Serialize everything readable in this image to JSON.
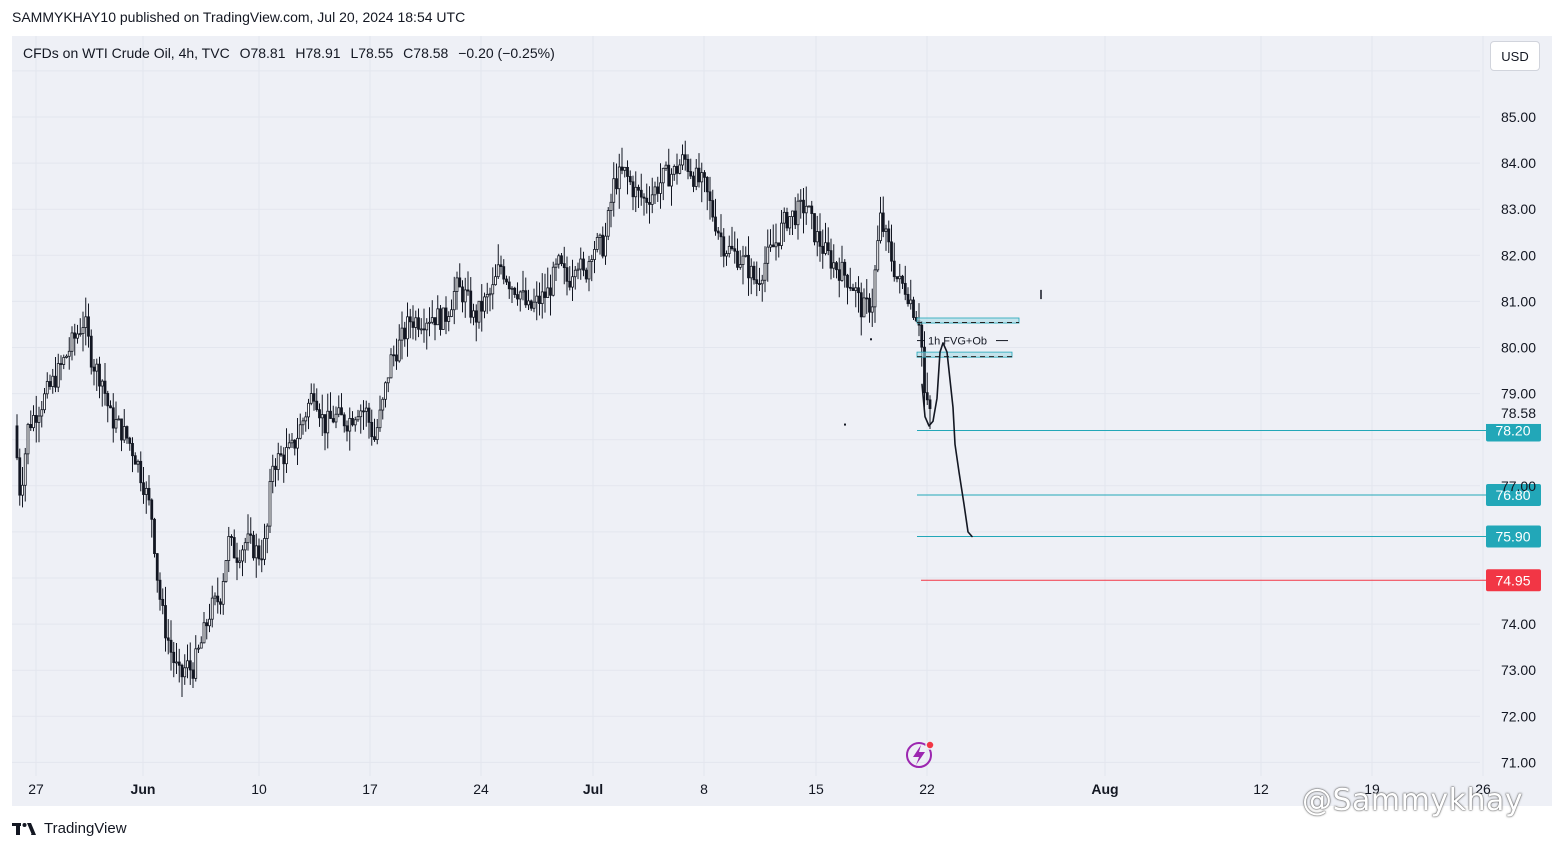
{
  "header": {
    "published_line": "SAMMYKHAY10 published on TradingView.com, Jul 20, 2024 18:54 UTC",
    "symbol": "CFDs on WTI Crude Oil, 4h, TVC",
    "open": "O78.81",
    "high": "H78.91",
    "low": "L78.55",
    "close": "C78.58",
    "change": "−0.20 (−0.25%)",
    "currency": "USD"
  },
  "footer": {
    "brand": "TradingView",
    "watermark": "@Sammykhay"
  },
  "colors": {
    "bull_candle": "#131722",
    "bear_candle": "#131722",
    "target_line": "#22a7b8",
    "stop_line": "#f23645",
    "fvg_zone": "#a8dbe6",
    "background": "#eef0f6"
  },
  "chart_data": {
    "type": "candlestick",
    "symbol": "CFDs on WTI Crude Oil",
    "timeframe": "4h",
    "y_axis": {
      "ticks": [
        85.0,
        84.0,
        83.0,
        82.0,
        81.0,
        80.0,
        79.0,
        77.0,
        74.0,
        73.0,
        72.0,
        71.0
      ],
      "ylim": [
        70.7,
        86.7
      ]
    },
    "x_axis": {
      "ticks": [
        "27",
        "Jun",
        "10",
        "17",
        "24",
        "Jul",
        "8",
        "15",
        "22",
        "Aug",
        "12",
        "19",
        "26"
      ]
    },
    "price_path": [
      [
        0,
        78.3
      ],
      [
        6,
        76.8
      ],
      [
        14,
        78.3
      ],
      [
        30,
        78.9
      ],
      [
        45,
        79.5
      ],
      [
        58,
        80.1
      ],
      [
        70,
        80.6
      ],
      [
        78,
        79.7
      ],
      [
        88,
        79.3
      ],
      [
        96,
        78.5
      ],
      [
        104,
        78.3
      ],
      [
        114,
        78.0
      ],
      [
        122,
        77.6
      ],
      [
        130,
        77.0
      ],
      [
        138,
        76.3
      ],
      [
        144,
        74.8
      ],
      [
        150,
        74.0
      ],
      [
        158,
        73.3
      ],
      [
        166,
        72.8
      ],
      [
        172,
        73.1
      ],
      [
        178,
        73.0
      ],
      [
        186,
        73.5
      ],
      [
        196,
        74.3
      ],
      [
        206,
        74.6
      ],
      [
        214,
        75.8
      ],
      [
        222,
        75.5
      ],
      [
        232,
        75.8
      ],
      [
        246,
        75.5
      ],
      [
        252,
        75.8
      ],
      [
        258,
        77.5
      ],
      [
        266,
        77.6
      ],
      [
        278,
        77.8
      ],
      [
        290,
        78.5
      ],
      [
        300,
        79.1
      ],
      [
        310,
        78.3
      ],
      [
        320,
        78.5
      ],
      [
        334,
        78.4
      ],
      [
        344,
        78.7
      ],
      [
        352,
        78.6
      ],
      [
        360,
        78.0
      ],
      [
        368,
        78.7
      ],
      [
        376,
        79.7
      ],
      [
        386,
        80.1
      ],
      [
        396,
        80.6
      ],
      [
        406,
        80.6
      ],
      [
        418,
        80.7
      ],
      [
        430,
        80.6
      ],
      [
        442,
        81.3
      ],
      [
        452,
        81.1
      ],
      [
        460,
        80.6
      ],
      [
        468,
        80.9
      ],
      [
        478,
        81.2
      ],
      [
        486,
        81.8
      ],
      [
        496,
        81.4
      ],
      [
        506,
        81.2
      ],
      [
        514,
        80.8
      ],
      [
        524,
        81.0
      ],
      [
        534,
        81.2
      ],
      [
        544,
        81.8
      ],
      [
        554,
        81.4
      ],
      [
        562,
        82.0
      ],
      [
        570,
        81.5
      ],
      [
        578,
        82.2
      ],
      [
        590,
        82.2
      ],
      [
        600,
        83.6
      ],
      [
        610,
        83.8
      ],
      [
        620,
        83.4
      ],
      [
        630,
        83.2
      ],
      [
        640,
        83.4
      ],
      [
        650,
        83.7
      ],
      [
        660,
        83.8
      ],
      [
        670,
        84.1
      ],
      [
        680,
        83.7
      ],
      [
        690,
        83.5
      ],
      [
        700,
        82.8
      ],
      [
        710,
        82.2
      ],
      [
        722,
        82.0
      ],
      [
        732,
        81.8
      ],
      [
        742,
        81.4
      ],
      [
        752,
        81.9
      ],
      [
        762,
        82.3
      ],
      [
        772,
        82.8
      ],
      [
        782,
        82.9
      ],
      [
        792,
        83.1
      ],
      [
        800,
        82.5
      ],
      [
        810,
        82.1
      ],
      [
        820,
        81.8
      ],
      [
        830,
        81.6
      ],
      [
        840,
        81.3
      ],
      [
        848,
        80.8
      ],
      [
        858,
        81.0
      ],
      [
        866,
        82.8
      ],
      [
        874,
        82.2
      ],
      [
        884,
        81.4
      ],
      [
        892,
        81.3
      ],
      [
        900,
        80.8
      ],
      [
        906,
        80.6
      ],
      [
        910,
        79.0
      ],
      [
        914,
        78.6
      ]
    ],
    "projection_path": [
      [
        905,
        79.2
      ],
      [
        908,
        78.5
      ],
      [
        912,
        78.3
      ],
      [
        916,
        78.4
      ],
      [
        920,
        78.9
      ],
      [
        923,
        79.9
      ],
      [
        926,
        80.1
      ],
      [
        930,
        79.9
      ],
      [
        933,
        79.3
      ],
      [
        936,
        78.7
      ],
      [
        938,
        77.9
      ],
      [
        942,
        77.3
      ],
      [
        947,
        76.6
      ],
      [
        951,
        76.0
      ],
      [
        955,
        75.9
      ]
    ],
    "annotation_text": "1h FVG+Ob",
    "fvg_zones": [
      {
        "low": 80.53,
        "high": 80.64
      },
      {
        "low": 79.79,
        "high": 79.9
      }
    ],
    "price_lines": [
      {
        "value": 78.2,
        "label": "78.20",
        "kind": "target"
      },
      {
        "value": 76.8,
        "label": "76.80",
        "kind": "target"
      },
      {
        "value": 75.9,
        "label": "75.90",
        "kind": "target"
      },
      {
        "value": 74.95,
        "label": "74.95",
        "kind": "stop"
      }
    ],
    "last_price": "78.58",
    "grid": true
  }
}
